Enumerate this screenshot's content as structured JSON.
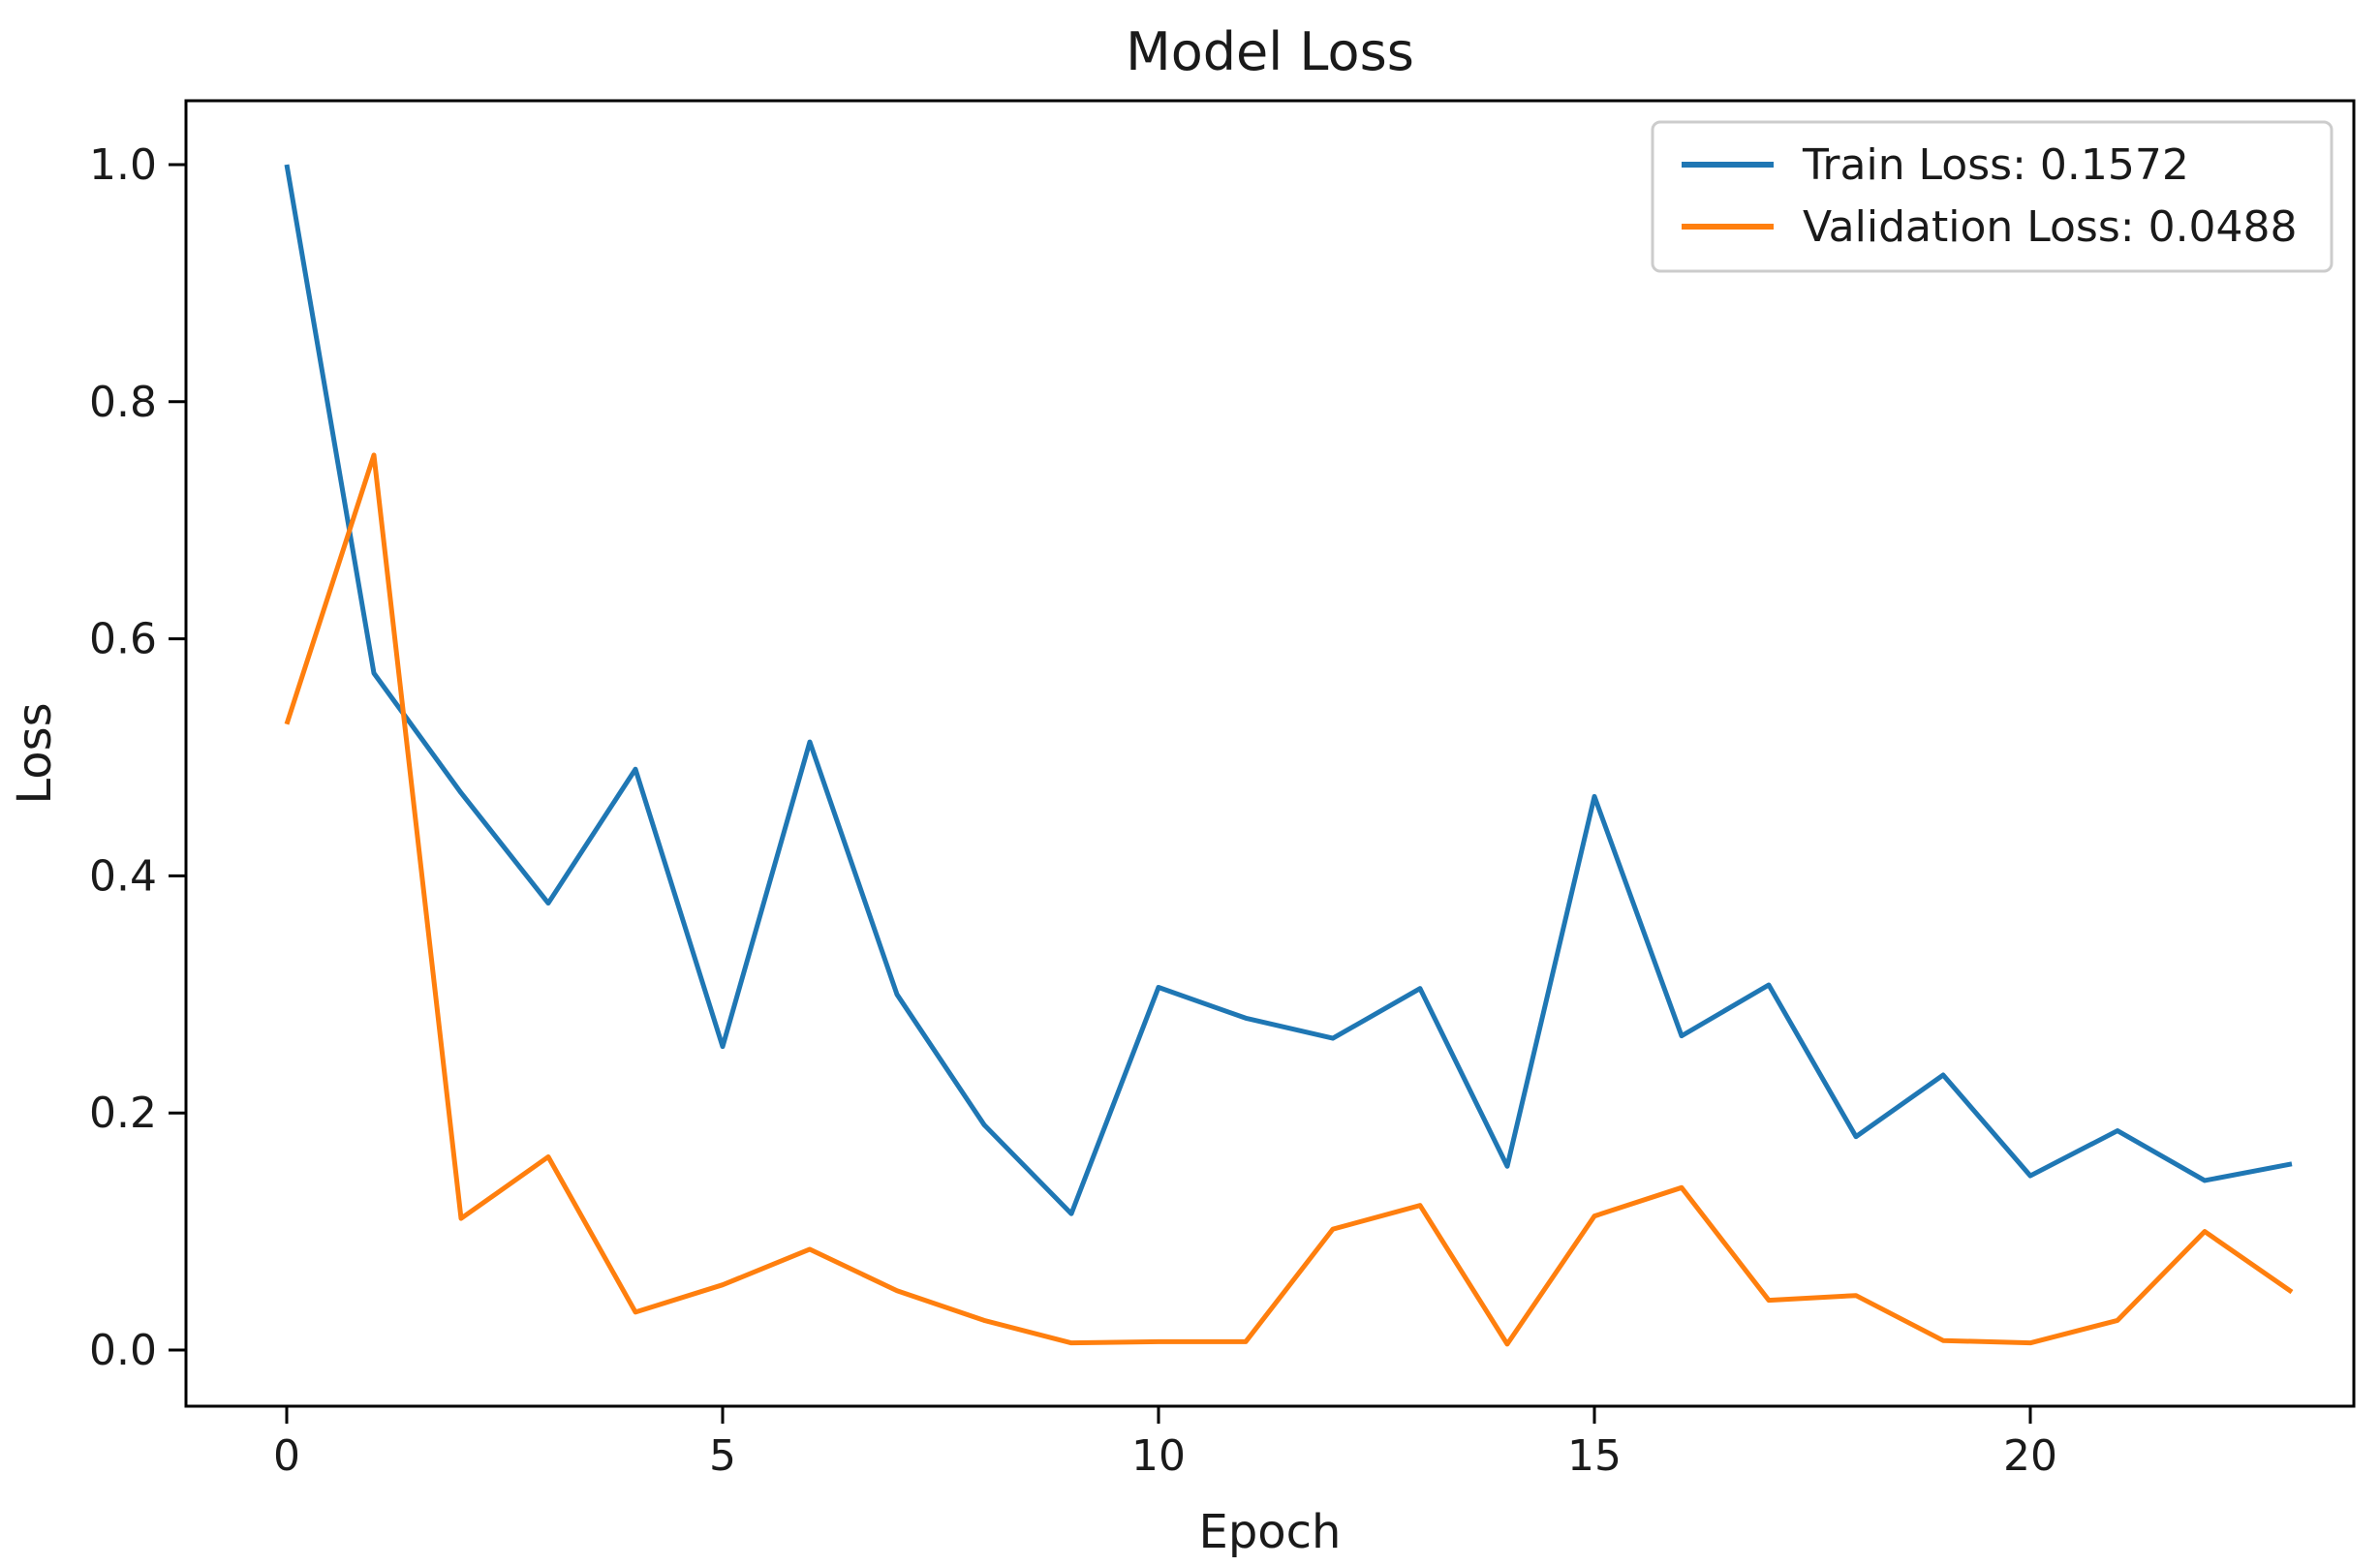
{
  "chart_data": {
    "type": "line",
    "title": "Model Loss",
    "xlabel": "Epoch",
    "ylabel": "Loss",
    "grid": false,
    "legend_position": "upper right",
    "xlim": [
      -1.15,
      24.15
    ],
    "ylim": [
      -0.05,
      1.05
    ],
    "xticks": [
      0,
      5,
      10,
      15,
      20
    ],
    "yticks": [
      0.0,
      0.2,
      0.4,
      0.6,
      0.8,
      1.0
    ],
    "ytick_labels": [
      "0.0",
      "0.2",
      "0.4",
      "0.6",
      "0.8",
      "1.0"
    ],
    "x": [
      0,
      1,
      2,
      3,
      4,
      5,
      6,
      7,
      8,
      9,
      10,
      11,
      12,
      13,
      14,
      15,
      16,
      17,
      18,
      19,
      20,
      21,
      22,
      23
    ],
    "series": [
      {
        "name": "Train Loss: 0.1572",
        "color": "#1f77b4",
        "values": [
          1.0,
          0.571,
          0.47,
          0.377,
          0.49,
          0.256,
          0.513,
          0.3,
          0.19,
          0.115,
          0.306,
          0.28,
          0.263,
          0.305,
          0.155,
          0.467,
          0.265,
          0.308,
          0.18,
          0.232,
          0.147,
          0.185,
          0.143,
          0.157
        ]
      },
      {
        "name": "Validation Loss: 0.0488",
        "color": "#ff7f0e",
        "values": [
          0.528,
          0.755,
          0.111,
          0.163,
          0.032,
          0.055,
          0.085,
          0.05,
          0.025,
          0.006,
          0.007,
          0.007,
          0.102,
          0.122,
          0.005,
          0.113,
          0.137,
          0.042,
          0.046,
          0.008,
          0.006,
          0.025,
          0.1,
          0.049
        ]
      }
    ],
    "final_train_loss": "0.1572",
    "final_validation_loss": "0.0488"
  }
}
